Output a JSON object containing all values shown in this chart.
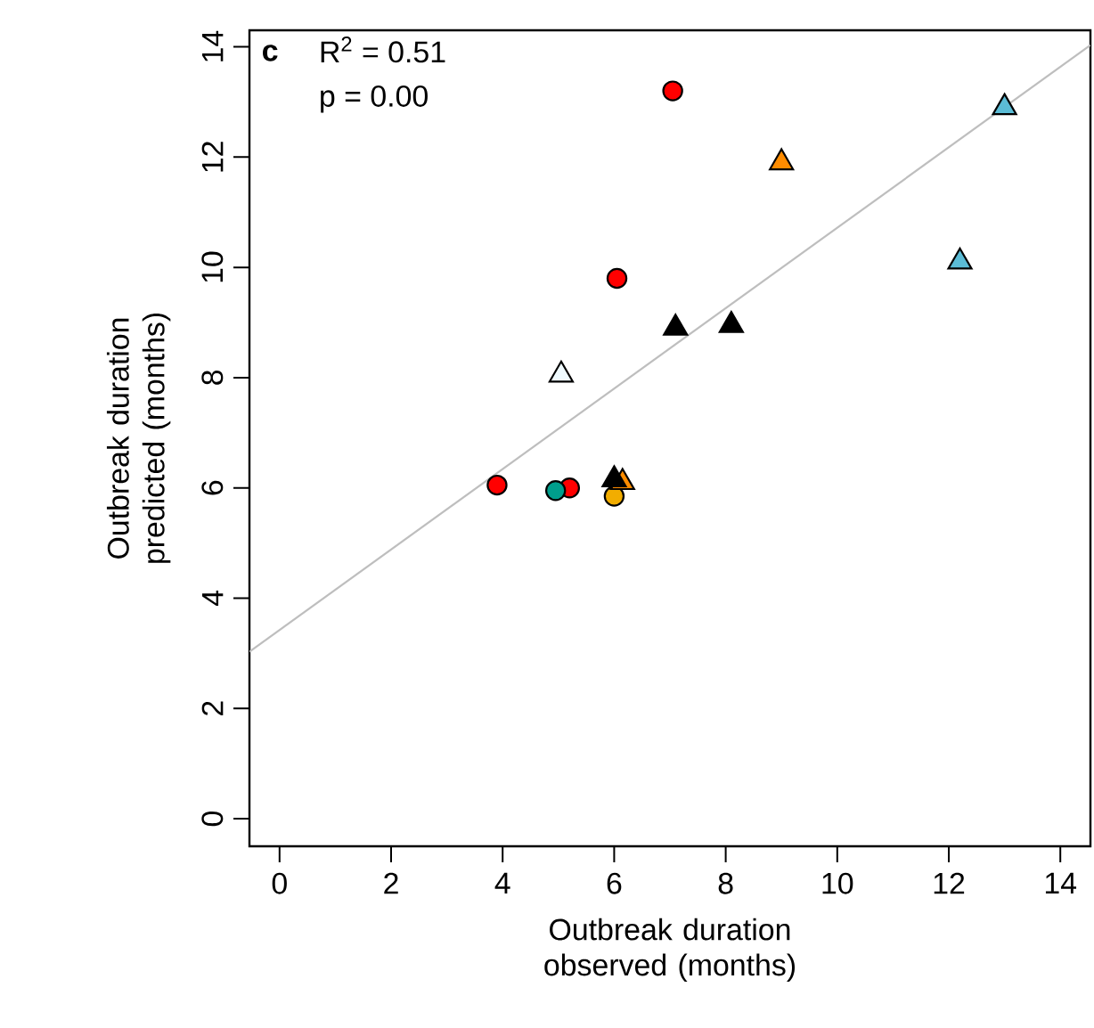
{
  "chart_data": {
    "type": "scatter",
    "xlabel": "Outbreak duration observed (months)",
    "ylabel": "Outbreak duration predicted (months)",
    "xlim": [
      -0.54,
      14.54
    ],
    "ylim": [
      -0.5,
      14.3
    ],
    "xticks": [
      0,
      2,
      4,
      6,
      8,
      10,
      12,
      14
    ],
    "yticks": [
      0,
      2,
      4,
      6,
      8,
      10,
      12,
      14
    ],
    "grid": false,
    "annotations": [
      "**c**",
      "R$^{2}$ = 0.51",
      "p =  0.00"
    ],
    "series": [
      {
        "color": "#ff0000",
        "marker": "circle",
        "x": [
          7.05,
          6.05,
          3.9,
          5.2
        ],
        "values": [
          13.2,
          9.8,
          6.05,
          6.0
        ]
      },
      {
        "color": "#009e8c",
        "marker": "circle",
        "x": [
          4.95
        ],
        "values": [
          5.95
        ]
      },
      {
        "color": "#f2ad00",
        "marker": "circle",
        "x": [
          6.0
        ],
        "values": [
          5.85
        ]
      },
      {
        "color": "#ff8c00",
        "marker": "triangle",
        "x": [
          9.0,
          6.15
        ],
        "values": [
          11.9,
          6.1
        ]
      },
      {
        "color": "#000000",
        "marker": "triangle",
        "x": [
          7.1,
          8.1,
          6.0
        ],
        "values": [
          8.9,
          8.95,
          6.15
        ]
      },
      {
        "color": "#5bbcd6",
        "marker": "triangle",
        "x": [
          13.0,
          12.2
        ],
        "values": [
          12.9,
          10.1
        ]
      },
      {
        "color": "#f0fbff",
        "marker": "triangle",
        "x": [
          5.05
        ],
        "values": [
          8.05
        ]
      },
      {
        "type": "line",
        "color": "#bebebe",
        "marker": "none",
        "x": [
          -0.54,
          14.54
        ],
        "values": [
          3.03,
          14.03
        ]
      }
    ]
  }
}
